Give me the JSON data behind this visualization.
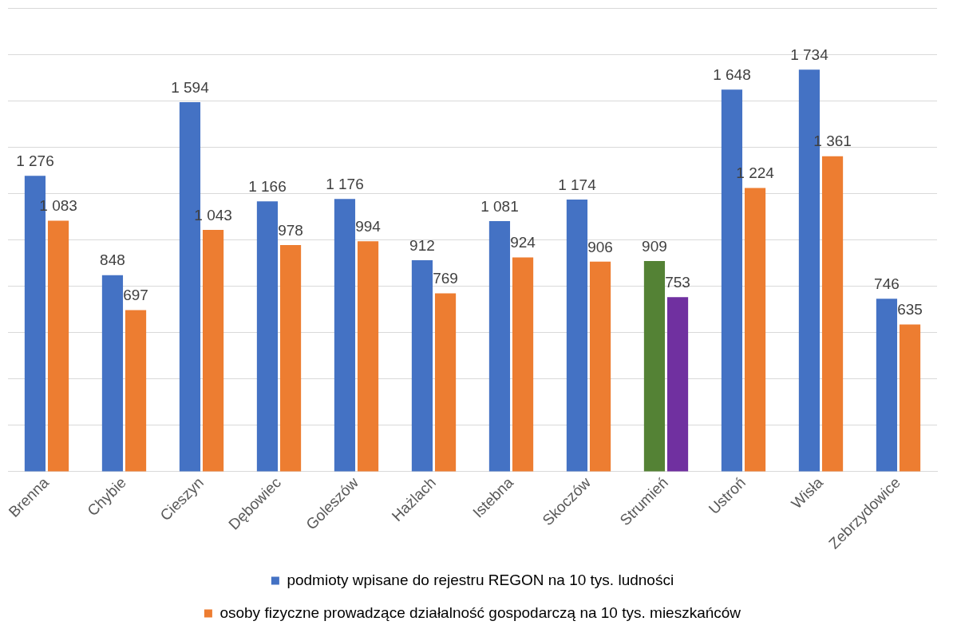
{
  "chart_data": {
    "type": "bar",
    "categories": [
      "Brenna",
      "Chybie",
      "Cieszyn",
      "Dębowiec",
      "Goleszów",
      "Hażlach",
      "Istebna",
      "Skoczów",
      "Strumień",
      "Ustroń",
      "Wisła",
      "Zebrzydowice"
    ],
    "series": [
      {
        "name": "podmioty wpisane do rejestru REGON na 10 tys. ludności",
        "color": "#4472c4",
        "colors": [
          "#4472c4",
          "#4472c4",
          "#4472c4",
          "#4472c4",
          "#4472c4",
          "#4472c4",
          "#4472c4",
          "#4472c4",
          "#548235",
          "#4472c4",
          "#4472c4",
          "#4472c4"
        ],
        "values": [
          1276,
          848,
          1594,
          1166,
          1176,
          912,
          1081,
          1174,
          909,
          1648,
          1734,
          746
        ],
        "value_labels": [
          "1 276",
          "848",
          "1 594",
          "1 166",
          "1 176",
          "912",
          "1 081",
          "1 174",
          "909",
          "1 648",
          "1 734",
          "746"
        ]
      },
      {
        "name": "osoby fizyczne prowadzące działalność gospodarczą na 10 tys. mieszkańców",
        "color": "#ed7d31",
        "colors": [
          "#ed7d31",
          "#ed7d31",
          "#ed7d31",
          "#ed7d31",
          "#ed7d31",
          "#ed7d31",
          "#ed7d31",
          "#ed7d31",
          "#7030a0",
          "#ed7d31",
          "#ed7d31",
          "#ed7d31"
        ],
        "values": [
          1083,
          697,
          1043,
          978,
          994,
          769,
          924,
          906,
          753,
          1224,
          1361,
          635
        ],
        "value_labels": [
          "1 083",
          "697",
          "1 043",
          "978",
          "994",
          "769",
          "924",
          "906",
          "753",
          "1 224",
          "1 361",
          "635"
        ]
      }
    ],
    "ylim": [
      0,
      2000
    ],
    "yticks": [
      {
        "value": 0,
        "label": null
      },
      {
        "value": 200,
        "label": null
      },
      {
        "value": 400,
        "label": null
      },
      {
        "value": 600,
        "label": null
      },
      {
        "value": 800,
        "label": null
      },
      {
        "value": 1000,
        "label": null
      },
      {
        "value": 1200,
        "label": null
      },
      {
        "value": 1400,
        "label": null
      },
      {
        "value": 1600,
        "label": null
      },
      {
        "value": 1800,
        "label": null
      },
      {
        "value": 2000,
        "label": null
      }
    ],
    "tick_labels": "x",
    "grid": "y",
    "legend": "bottom"
  }
}
